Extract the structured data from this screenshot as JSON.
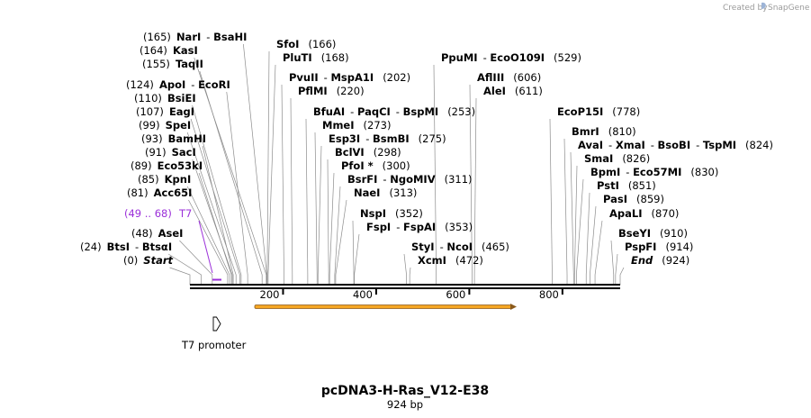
{
  "credit": {
    "text": "Created by",
    "brand": "SnapGene"
  },
  "sequence": {
    "name": "pcDNA3-H-Ras_V12-E38",
    "length_label": "924 bp",
    "length": 924
  },
  "ruler": {
    "ticks": [
      200,
      400,
      600,
      800
    ]
  },
  "colors": {
    "feature": "#9b30d9",
    "orf": "#f5a623",
    "orf_stroke": "#8b5a1b",
    "line": "#000000"
  },
  "sites": [
    {
      "pos_label": "(165)",
      "names": [
        "NarI",
        "BsaHI"
      ],
      "position": 165
    },
    {
      "pos_label": "(164)",
      "names": [
        "KasI"
      ],
      "position": 164
    },
    {
      "pos_label": "(155)",
      "names": [
        "TaqII"
      ],
      "position": 155
    },
    {
      "pos_label": "(124)",
      "names": [
        "ApoI",
        "EcoRI"
      ],
      "position": 124
    },
    {
      "pos_label": "(110)",
      "names": [
        "BsiEI"
      ],
      "position": 110
    },
    {
      "pos_label": "(107)",
      "names": [
        "EagI"
      ],
      "position": 107
    },
    {
      "pos_label": "(99)",
      "names": [
        "SpeI"
      ],
      "position": 99
    },
    {
      "pos_label": "(93)",
      "names": [
        "BamHI"
      ],
      "position": 93
    },
    {
      "pos_label": "(91)",
      "names": [
        "SacI"
      ],
      "position": 91
    },
    {
      "pos_label": "(89)",
      "names": [
        "Eco53kI"
      ],
      "position": 89
    },
    {
      "pos_label": "(85)",
      "names": [
        "KpnI"
      ],
      "position": 85
    },
    {
      "pos_label": "(81)",
      "names": [
        "Acc65I"
      ],
      "position": 81
    },
    {
      "pos_label": "(48)",
      "names": [
        "AseI"
      ],
      "position": 48
    },
    {
      "pos_label": "(24)",
      "names": [
        "BtsI",
        "BtsαI"
      ],
      "position": 24
    },
    {
      "pos_label": "(0)",
      "names": [
        "Start"
      ],
      "position": 0,
      "italic": true
    },
    {
      "pos_label": "(166)",
      "names": [
        "SfoI"
      ],
      "position": 166
    },
    {
      "pos_label": "(168)",
      "names": [
        "PluTI"
      ],
      "position": 168
    },
    {
      "pos_label": "(202)",
      "names": [
        "PvuII",
        "MspA1I"
      ],
      "position": 202
    },
    {
      "pos_label": "(220)",
      "names": [
        "PflMI"
      ],
      "position": 220
    },
    {
      "pos_label": "(253)",
      "names": [
        "BfuAI",
        "PaqCI",
        "BspMI"
      ],
      "position": 253
    },
    {
      "pos_label": "(273)",
      "names": [
        "MmeI"
      ],
      "position": 273
    },
    {
      "pos_label": "(275)",
      "names": [
        "Esp3I",
        "BsmBI"
      ],
      "position": 275
    },
    {
      "pos_label": "(298)",
      "names": [
        "BclVI"
      ],
      "position": 298
    },
    {
      "pos_label": "(300)",
      "names": [
        "PfoI *"
      ],
      "position": 300
    },
    {
      "pos_label": "(311)",
      "names": [
        "BsrFI",
        "NgoMIV"
      ],
      "position": 311
    },
    {
      "pos_label": "(313)",
      "names": [
        "NaeI"
      ],
      "position": 313
    },
    {
      "pos_label": "(352)",
      "names": [
        "NspI"
      ],
      "position": 352
    },
    {
      "pos_label": "(353)",
      "names": [
        "FspI",
        "FspAI"
      ],
      "position": 353
    },
    {
      "pos_label": "(529)",
      "names": [
        "PpuMI",
        "EcoO109I"
      ],
      "position": 529
    },
    {
      "pos_label": "(465)",
      "names": [
        "StyI",
        "NcoI"
      ],
      "position": 465
    },
    {
      "pos_label": "(472)",
      "names": [
        "XcmI"
      ],
      "position": 472
    },
    {
      "pos_label": "(606)",
      "names": [
        "AflIII"
      ],
      "position": 606
    },
    {
      "pos_label": "(611)",
      "names": [
        "AleI"
      ],
      "position": 611
    },
    {
      "pos_label": "(778)",
      "names": [
        "EcoP15I"
      ],
      "position": 778
    },
    {
      "pos_label": "(810)",
      "names": [
        "BmrI"
      ],
      "position": 810
    },
    {
      "pos_label": "(824)",
      "names": [
        "AvaI",
        "XmaI",
        "BsoBI",
        "TspMI"
      ],
      "position": 824
    },
    {
      "pos_label": "(826)",
      "names": [
        "SmaI"
      ],
      "position": 826
    },
    {
      "pos_label": "(830)",
      "names": [
        "BpmI",
        "Eco57MI"
      ],
      "position": 830
    },
    {
      "pos_label": "(851)",
      "names": [
        "PstI"
      ],
      "position": 851
    },
    {
      "pos_label": "(859)",
      "names": [
        "PasI"
      ],
      "position": 859
    },
    {
      "pos_label": "(870)",
      "names": [
        "ApaLI"
      ],
      "position": 870
    },
    {
      "pos_label": "(910)",
      "names": [
        "BseYI"
      ],
      "position": 910
    },
    {
      "pos_label": "(914)",
      "names": [
        "PspFI"
      ],
      "position": 914
    },
    {
      "pos_label": "(924)",
      "names": [
        "End"
      ],
      "position": 924,
      "italic": true
    }
  ],
  "features": [
    {
      "name": "T7",
      "range_label": "(49 .. 68)",
      "start": 49,
      "end": 68
    }
  ],
  "promoter": {
    "label": "T7 promoter"
  }
}
